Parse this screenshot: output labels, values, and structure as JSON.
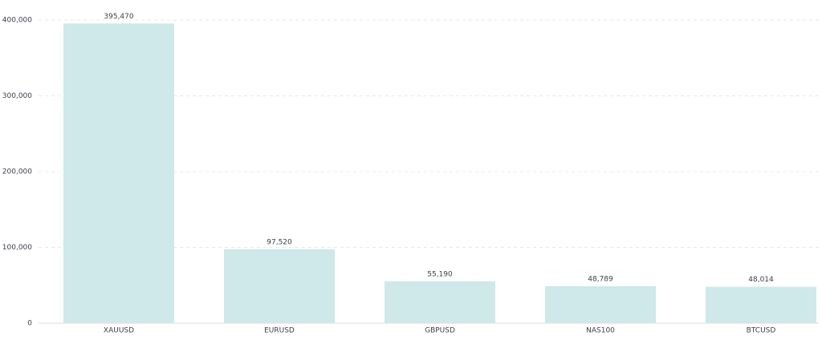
{
  "chart_data": {
    "type": "bar",
    "categories": [
      "XAUUSD",
      "EURUSD",
      "GBPUSD",
      "NAS100",
      "BTCUSD"
    ],
    "values": [
      395470,
      97520,
      55190,
      48789,
      48014
    ],
    "value_labels": [
      "395,470",
      "97,520",
      "55,190",
      "48,789",
      "48,014"
    ],
    "color": "#cfe8e9",
    "ylim": [
      0,
      400000
    ],
    "yticks": [
      0,
      {
        "value": 100000,
        "label": "100,000"
      },
      {
        "value": 200000,
        "label": "200,000"
      },
      {
        "value": 300000,
        "label": "300,000"
      },
      {
        "value": 400000,
        "label": "400,000"
      }
    ],
    "grid": true
  }
}
